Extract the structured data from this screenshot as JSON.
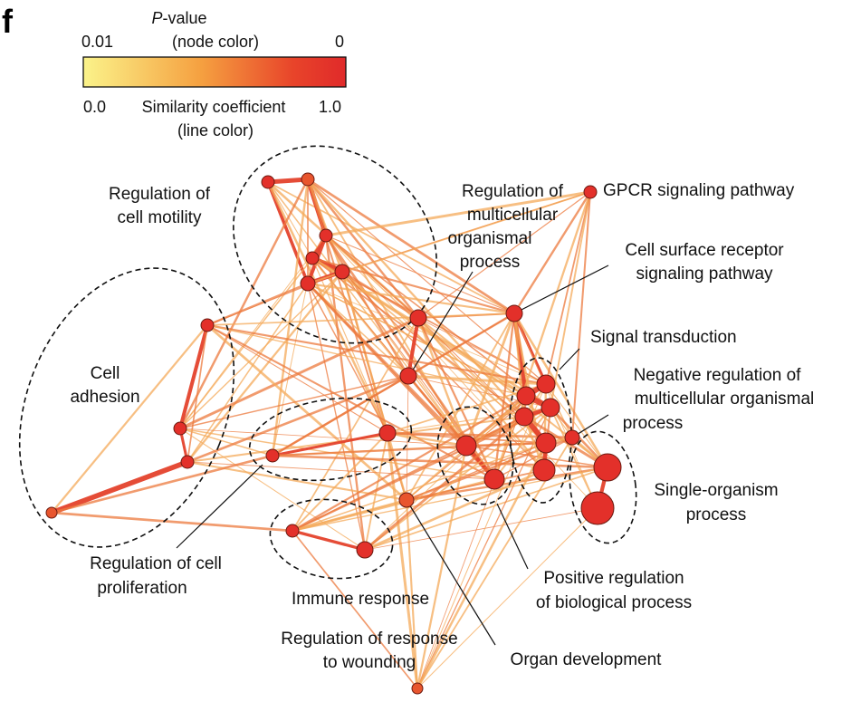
{
  "panel_letter": "f",
  "legend": {
    "pvalue_title_italic": "P",
    "pvalue_title_rest": "-value",
    "pvalue_subtitle": "(node color)",
    "pvalue_min": "0.01",
    "pvalue_max": "0",
    "similarity_min": "0.0",
    "similarity_title": "Similarity coefficient",
    "similarity_max": "1.0",
    "similarity_subtitle": "(line color)",
    "colors": [
      "#fbf38a",
      "#f5a040",
      "#e8442a",
      "#e02a2a"
    ]
  },
  "labels": {
    "motility_1": "Regulation of",
    "motility_2": "cell motility",
    "adhesion_1": "Cell",
    "adhesion_2": "adhesion",
    "multicell_1": "Regulation of",
    "multicell_2": "multicellular",
    "multicell_3": "organismal",
    "multicell_4": "process",
    "gpcr": "GPCR signaling pathway",
    "surface_1": "Cell surface receptor",
    "surface_2": "signaling pathway",
    "signal": "Signal transduction",
    "negreg_1": "Negative regulation of",
    "negreg_2": "multicellular organismal",
    "negreg_3": "process",
    "single_1": "Single-organism",
    "single_2": "process",
    "posreg_1": "Positive regulation",
    "posreg_2": "of biological process",
    "prolif_1": "Regulation of cell",
    "prolif_2": "proliferation",
    "immune": "Immune response",
    "wound_1": "Regulation of response",
    "wound_2": "to wounding",
    "organ": "Organ development"
  }
}
